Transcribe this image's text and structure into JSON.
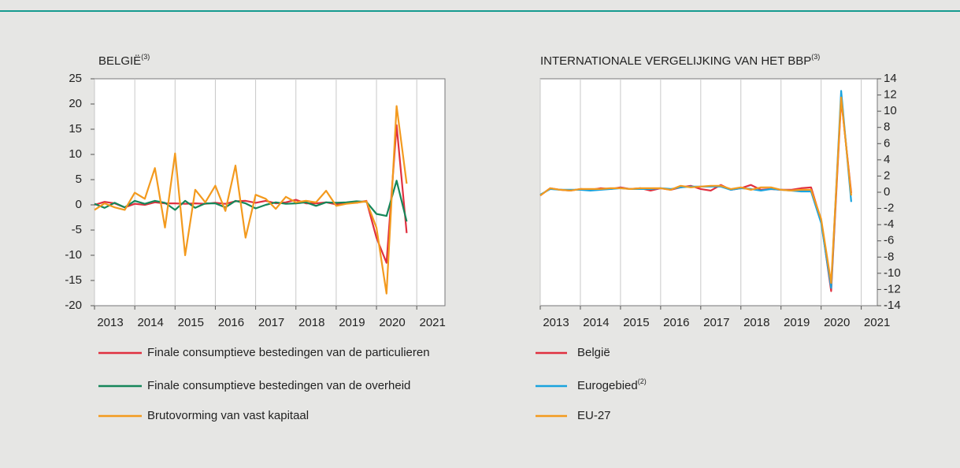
{
  "chart_data": [
    {
      "type": "line",
      "title": "BELGIË",
      "title_note": "(3)",
      "y_axis_side": "left",
      "x_grid": true,
      "x": [
        2013,
        2013.25,
        2013.5,
        2013.75,
        2014,
        2014.25,
        2014.5,
        2014.75,
        2015,
        2015.25,
        2015.5,
        2015.75,
        2016,
        2016.25,
        2016.5,
        2016.75,
        2017,
        2017.25,
        2017.5,
        2017.75,
        2018,
        2018.25,
        2018.5,
        2018.75,
        2019,
        2019.25,
        2019.5,
        2019.75,
        2020,
        2020.25,
        2020.5,
        2020.75
      ],
      "xlim": [
        2013,
        2021.7
      ],
      "xticks": [
        2013,
        2014,
        2015,
        2016,
        2017,
        2018,
        2019,
        2020,
        2021
      ],
      "ylim": [
        -20,
        25
      ],
      "yticks": [
        -20,
        -15,
        -10,
        -5,
        0,
        5,
        10,
        15,
        20,
        25
      ],
      "series": [
        {
          "name": "Finale consumptieve bestedingen van de particulieren",
          "color": "#e0303f",
          "values": [
            0,
            0.6,
            0.3,
            -0.5,
            0.2,
            0,
            0.5,
            0.3,
            0.3,
            0.2,
            0.3,
            0.2,
            0.4,
            0.2,
            0.7,
            0.8,
            0.4,
            0.8,
            0.3,
            0.5,
            1,
            0.3,
            0.3,
            0.5,
            0.1,
            0.4,
            0.4,
            0.8,
            -6.5,
            -11.5,
            15.8,
            -5.6
          ]
        },
        {
          "name": "Finale consumptieve bestedingen van de overheid",
          "color": "#16875a",
          "values": [
            0.2,
            -0.6,
            0.4,
            -0.5,
            0.8,
            0.2,
            0.8,
            0.4,
            -1,
            0.8,
            -0.6,
            0.3,
            0.3,
            -0.5,
            0.8,
            0.3,
            -0.7,
            0,
            0.5,
            0.2,
            0.3,
            0.5,
            -0.2,
            0.5,
            0.4,
            0.5,
            0.7,
            0.6,
            -1.8,
            -2.2,
            4.8,
            -3.3
          ]
        },
        {
          "name": "Brutovorming van vast kapitaal",
          "color": "#f39a1e",
          "values": [
            -1,
            0.3,
            -0.5,
            -1,
            2.4,
            1.2,
            7.3,
            -4.5,
            10.2,
            -10,
            3,
            0.5,
            3.8,
            -1.2,
            7.8,
            -6.5,
            2,
            1.2,
            -0.8,
            1.6,
            0.5,
            0.8,
            0.5,
            2.8,
            -0.2,
            0.2,
            0.4,
            0.7,
            -4.5,
            -17.6,
            19.6,
            4.2
          ]
        }
      ]
    },
    {
      "type": "line",
      "title": "INTERNATIONALE VERGELIJKING VAN HET BBP",
      "title_note": "(3)",
      "y_axis_side": "right",
      "x_grid": true,
      "x": [
        2013,
        2013.25,
        2013.5,
        2013.75,
        2014,
        2014.25,
        2014.5,
        2014.75,
        2015,
        2015.25,
        2015.5,
        2015.75,
        2016,
        2016.25,
        2016.5,
        2016.75,
        2017,
        2017.25,
        2017.5,
        2017.75,
        2018,
        2018.25,
        2018.5,
        2018.75,
        2019,
        2019.25,
        2019.5,
        2019.75,
        2020,
        2020.25,
        2020.5,
        2020.75
      ],
      "xlim": [
        2013,
        2021.4
      ],
      "xticks": [
        2013,
        2014,
        2015,
        2016,
        2017,
        2018,
        2019,
        2020,
        2021
      ],
      "ylim": [
        -14,
        14
      ],
      "yticks": [
        -14,
        -12,
        -10,
        -8,
        -6,
        -4,
        -2,
        0,
        2,
        4,
        6,
        8,
        10,
        12,
        14
      ],
      "series": [
        {
          "name": "België",
          "color": "#e0303f",
          "values": [
            -0.4,
            0.5,
            0.3,
            0.2,
            0.4,
            0.3,
            0.5,
            0.4,
            0.6,
            0.4,
            0.5,
            0.2,
            0.5,
            0.3,
            0.6,
            0.8,
            0.4,
            0.2,
            0.9,
            0.3,
            0.5,
            0.9,
            0.3,
            0.4,
            0.3,
            0.3,
            0.5,
            0.6,
            -3.5,
            -12.2,
            11.5,
            -0.1
          ]
        },
        {
          "name": "Eurogebied",
          "name_note": "(2)",
          "color": "#1aa3de",
          "values": [
            -0.3,
            0.4,
            0.3,
            0.3,
            0.3,
            0.2,
            0.3,
            0.4,
            0.5,
            0.4,
            0.4,
            0.4,
            0.5,
            0.4,
            0.6,
            0.7,
            0.7,
            0.7,
            0.7,
            0.3,
            0.5,
            0.4,
            0.2,
            0.4,
            0.3,
            0.2,
            0.1,
            0.1,
            -3.8,
            -11.8,
            12.5,
            -1.2
          ]
        },
        {
          "name": "EU-27",
          "color": "#f39a1e",
          "values": [
            -0.4,
            0.5,
            0.3,
            0.2,
            0.4,
            0.4,
            0.4,
            0.5,
            0.5,
            0.4,
            0.5,
            0.5,
            0.5,
            0.3,
            0.8,
            0.6,
            0.7,
            0.8,
            0.8,
            0.4,
            0.6,
            0.3,
            0.6,
            0.6,
            0.3,
            0.2,
            0.3,
            0.3,
            -3.3,
            -11.2,
            11.7,
            -0.4
          ]
        }
      ]
    }
  ]
}
